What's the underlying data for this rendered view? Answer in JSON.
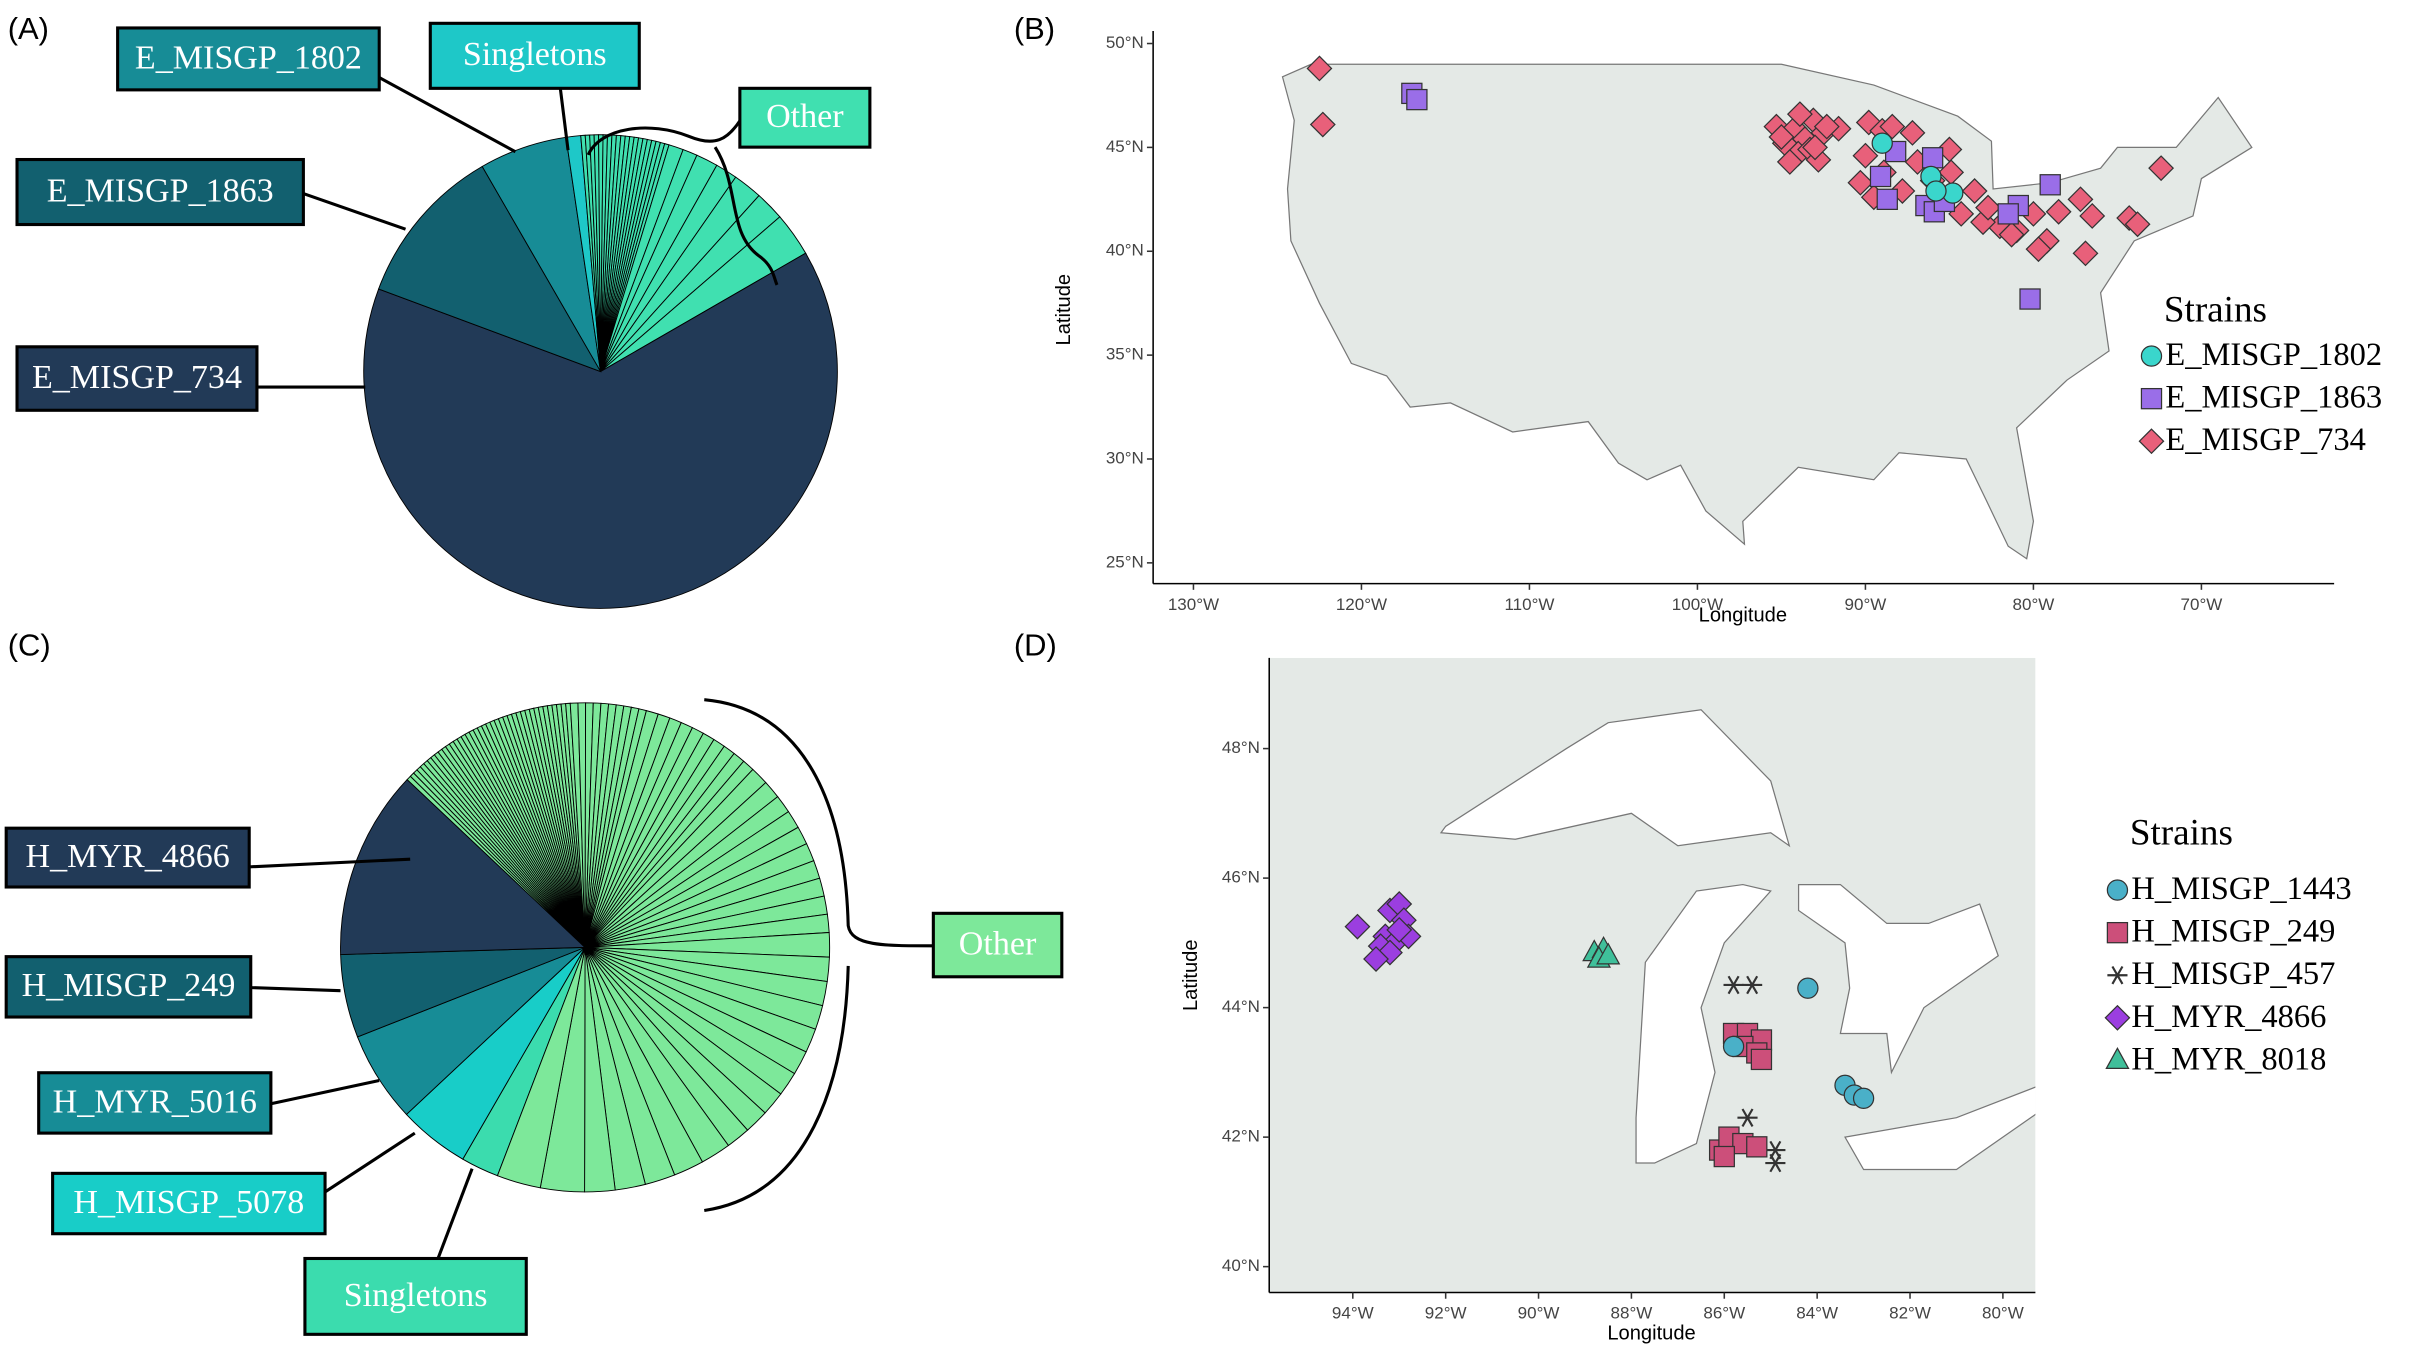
{
  "chart_data": [
    {
      "type": "pie",
      "panel_label": "(A)",
      "annotation": "Other",
      "other_color": "#40e0b0",
      "categories": [
        "E_MISGP_1802",
        "Singletons",
        null,
        null,
        null,
        null,
        null,
        null,
        null,
        null,
        null,
        null,
        null,
        null,
        null,
        null,
        null,
        null,
        null,
        null,
        null,
        null,
        null,
        null,
        null,
        null,
        null,
        null,
        null,
        "E_MISGP_734",
        "E_MISGP_1863"
      ],
      "values": [
        6,
        1,
        0.3,
        0.3,
        0.3,
        0.3,
        0.3,
        0.3,
        0.3,
        0.3,
        0.3,
        0.3,
        0.3,
        0.3,
        0.3,
        0.3,
        0.3,
        0.3,
        0.3,
        0.3,
        0.3,
        0.3,
        1,
        1,
        1.5,
        1.5,
        2,
        2,
        3,
        64,
        11
      ],
      "colors": [
        "#178c96",
        "#1ec8c8",
        null,
        null,
        null,
        null,
        null,
        null,
        null,
        null,
        null,
        null,
        null,
        null,
        null,
        null,
        null,
        null,
        null,
        null,
        null,
        null,
        null,
        null,
        null,
        null,
        null,
        null,
        null,
        "#223a57",
        "#12606f"
      ]
    },
    {
      "type": "scatter",
      "panel_label": "(B)",
      "x_label": "Longitude",
      "y_label": "Latitude",
      "legend_title": "Strains",
      "xlim": [
        -132.4,
        -62.1
      ],
      "ylim": [
        24,
        50.6
      ],
      "xticks": [
        {
          "value": -130,
          "label": "130°W"
        },
        {
          "value": -120,
          "label": "120°W"
        },
        {
          "value": -110,
          "label": "110°W"
        },
        {
          "value": -100,
          "label": "100°W"
        },
        {
          "value": -90,
          "label": "90°W"
        },
        {
          "value": -80,
          "label": "80°W"
        },
        {
          "value": -70,
          "label": "70°W"
        }
      ],
      "yticks": [
        {
          "value": 25,
          "label": "25°N"
        },
        {
          "value": 30,
          "label": "30°N"
        },
        {
          "value": 35,
          "label": "35°N"
        },
        {
          "value": 40,
          "label": "40°N"
        },
        {
          "value": 45,
          "label": "45°N"
        },
        {
          "value": 50,
          "label": "50°N"
        }
      ],
      "series": [
        {
          "name": "E_MISGP_1802",
          "color": "#3ad6cc",
          "marker": "circle",
          "x": [
            -86.1,
            -84.8,
            -89.0,
            -85.8
          ],
          "y": [
            43.6,
            42.8,
            45.2,
            42.9
          ]
        },
        {
          "name": "E_MISGP_1863",
          "color": "#9a6ee8",
          "marker": "square",
          "x": [
            -117.0,
            -116.7,
            -89.1,
            -88.7,
            -86.4,
            -85.9,
            -85.3,
            -88.2,
            -80.9,
            -79.0,
            -81.5,
            -80.2,
            -86.0
          ],
          "y": [
            47.6,
            47.3,
            43.6,
            42.5,
            42.2,
            41.9,
            42.4,
            44.8,
            42.2,
            43.2,
            41.8,
            37.7,
            44.5
          ]
        },
        {
          "name": "E_MISGP_734",
          "color": "#e8607a",
          "marker": "diamond",
          "x": [
            -122.5,
            -122.3,
            -95.3,
            -94.8,
            -94.2,
            -93.6,
            -93.1,
            -92.5,
            -94.0,
            -93.3,
            -92.8,
            -91.6,
            -95.0,
            -93.9,
            -92.3,
            -94.5,
            -93.0,
            -89.8,
            -89.0,
            -88.4,
            -87.2,
            -88.9,
            -90.3,
            -87.8,
            -86.0,
            -85.0,
            -83.5,
            -82.0,
            -81.0,
            -80.0,
            -78.5,
            -77.2,
            -76.5,
            -74.3,
            -73.8,
            -72.4,
            -84.3,
            -83.0,
            -90.0,
            -89.5,
            -86.9,
            -84.9,
            -82.7,
            -79.2,
            -76.9,
            -79.7,
            -81.3
          ],
          "y": [
            48.8,
            46.1,
            46.0,
            45.2,
            45.9,
            45.4,
            46.3,
            45.7,
            44.7,
            44.9,
            44.4,
            45.9,
            45.5,
            46.6,
            46.0,
            44.3,
            45.0,
            46.2,
            45.8,
            46.0,
            45.7,
            43.8,
            43.3,
            42.9,
            43.4,
            44.9,
            42.9,
            41.2,
            41.0,
            41.8,
            41.9,
            42.5,
            41.7,
            41.6,
            41.3,
            44.0,
            41.8,
            41.4,
            44.6,
            42.6,
            44.3,
            43.8,
            42.1,
            40.5,
            39.9,
            40.1,
            40.8
          ]
        }
      ]
    },
    {
      "type": "pie",
      "panel_label": "(C)",
      "annotation": "Other",
      "other_color": "#7de89a",
      "categories": [
        "Singletons",
        "H_MISGP_5078",
        "H_MYR_5016",
        "H_MISGP_249",
        "H_MYR_4866",
        null,
        null,
        null,
        null,
        null,
        null,
        null,
        null,
        null,
        null,
        null,
        null,
        null,
        null,
        null,
        null,
        null,
        null,
        null,
        null,
        null,
        null,
        null,
        null,
        null,
        null,
        null,
        null,
        null,
        null,
        null,
        null,
        null,
        null,
        null,
        null,
        null,
        null,
        null,
        null,
        null,
        null,
        null,
        null,
        null,
        null,
        null,
        null,
        null,
        null,
        null,
        null,
        null,
        null,
        null,
        null,
        null,
        null,
        null,
        null,
        null,
        null,
        null,
        null,
        null,
        null,
        null,
        null,
        null,
        null,
        null,
        null,
        null,
        null,
        null,
        null,
        null,
        null,
        null,
        null,
        null,
        null,
        null,
        null,
        null,
        null,
        null
      ],
      "values": [
        2.5,
        4.7,
        6,
        5.5,
        12.5,
        0.3,
        0.3,
        0.3,
        0.3,
        0.3,
        0.3,
        0.3,
        0.3,
        0.3,
        0.3,
        0.3,
        0.3,
        0.3,
        0.3,
        0.3,
        0.3,
        0.3,
        0.3,
        0.3,
        0.3,
        0.3,
        0.3,
        0.3,
        0.3,
        0.3,
        0.3,
        0.3,
        0.3,
        0.3,
        0.3,
        0.3,
        0.3,
        0.3,
        0.3,
        0.3,
        0.3,
        0.3,
        0.3,
        0.3,
        0.3,
        0.5,
        0.5,
        0.5,
        0.5,
        0.5,
        0.5,
        0.5,
        0.5,
        0.5,
        0.5,
        0.8,
        0.8,
        0.8,
        0.8,
        0.8,
        0.8,
        0.8,
        0.8,
        0.8,
        0.8,
        1.2,
        1.2,
        1.2,
        1.2,
        1.2,
        1.2,
        1.2,
        1.2,
        1.2,
        1.2,
        1.6,
        1.6,
        1.6,
        1.6,
        1.6,
        1.6,
        1.6,
        1.6,
        1.6,
        1.6,
        2,
        2,
        2,
        2,
        2,
        2.9,
        2.9
      ],
      "colors": [
        "#3bdcae",
        "#18cdc8",
        "#178c96",
        "#12606f",
        "#223a57",
        null,
        null,
        null,
        null,
        null,
        null,
        null,
        null,
        null,
        null,
        null,
        null,
        null,
        null,
        null,
        null,
        null,
        null,
        null,
        null,
        null,
        null,
        null,
        null,
        null,
        null,
        null,
        null,
        null,
        null,
        null,
        null,
        null,
        null,
        null,
        null,
        null,
        null,
        null,
        null,
        null,
        null,
        null,
        null,
        null,
        null,
        null,
        null,
        null,
        null,
        null,
        null,
        null,
        null,
        null,
        null,
        null,
        null,
        null,
        null,
        null,
        null,
        null,
        null,
        null,
        null,
        null,
        null,
        null,
        null,
        null,
        null,
        null,
        null,
        null,
        null,
        null,
        null,
        null,
        null,
        null,
        null,
        null,
        null,
        null,
        null,
        null
      ]
    },
    {
      "type": "scatter",
      "panel_label": "(D)",
      "x_label": "Longitude",
      "y_label": "Latitude",
      "legend_title": "Strains",
      "xlim": [
        -95.8,
        -79.3
      ],
      "ylim": [
        39.6,
        49.4
      ],
      "xticks": [
        {
          "value": -94,
          "label": "94°W"
        },
        {
          "value": -92,
          "label": "92°W"
        },
        {
          "value": -90,
          "label": "90°W"
        },
        {
          "value": -88,
          "label": "88°W"
        },
        {
          "value": -86,
          "label": "86°W"
        },
        {
          "value": -84,
          "label": "84°W"
        },
        {
          "value": -82,
          "label": "82°W"
        },
        {
          "value": -80,
          "label": "80°W"
        }
      ],
      "yticks": [
        {
          "value": 40,
          "label": "40°N"
        },
        {
          "value": 42,
          "label": "42°N"
        },
        {
          "value": 44,
          "label": "44°N"
        },
        {
          "value": 46,
          "label": "46°N"
        },
        {
          "value": 48,
          "label": "48°N"
        }
      ],
      "series": [
        {
          "name": "H_MISGP_1443",
          "color": "#4ab0c8",
          "marker": "circle",
          "x": [
            -84.2,
            -83.4,
            -83.2,
            -83.0,
            -85.8
          ],
          "y": [
            44.3,
            42.8,
            42.65,
            42.6,
            43.4
          ]
        },
        {
          "name": "H_MISGP_249",
          "color": "#cc4f7a",
          "marker": "square",
          "x": [
            -85.8,
            -85.5,
            -85.2,
            -85.6,
            -85.3,
            -85.2,
            -86.1,
            -85.9,
            -85.6,
            -85.3,
            -86.0
          ],
          "y": [
            43.6,
            43.6,
            43.5,
            43.4,
            43.3,
            43.2,
            41.8,
            42.0,
            41.9,
            41.85,
            41.7
          ]
        },
        {
          "name": "H_MISGP_457",
          "color": "#333333",
          "marker": "asterisk",
          "x": [
            -85.8,
            -85.4,
            -85.4,
            -85.5,
            -84.9,
            -84.9
          ],
          "y": [
            44.35,
            44.35,
            43.4,
            42.3,
            41.8,
            41.6
          ]
        },
        {
          "name": "H_MYR_4866",
          "color": "#9b3ee0",
          "marker": "diamond",
          "x": [
            -93.9,
            -93.2,
            -93.0,
            -92.9,
            -93.3,
            -93.1,
            -92.8,
            -93.4,
            -93.2,
            -93.0,
            -93.5
          ],
          "y": [
            45.25,
            45.5,
            45.6,
            45.35,
            45.1,
            45.0,
            45.1,
            44.95,
            44.85,
            45.2,
            44.75
          ]
        },
        {
          "name": "H_MYR_8018",
          "color": "#3fbf9a",
          "marker": "triangle",
          "x": [
            -88.8,
            -88.6,
            -88.7,
            -88.5
          ],
          "y": [
            44.85,
            44.9,
            44.75,
            44.8
          ]
        }
      ]
    }
  ]
}
